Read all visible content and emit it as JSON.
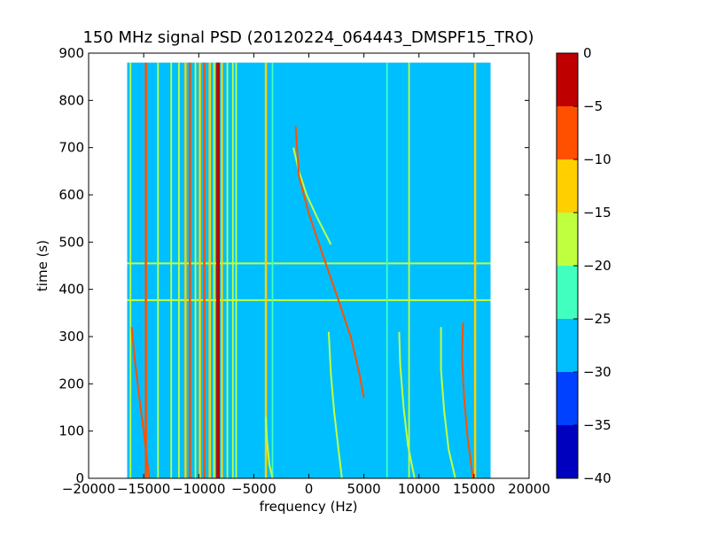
{
  "chart_data": {
    "type": "heatmap",
    "title": "150 MHz signal PSD (20120224_064443_DMSPF15_TRO)",
    "xlabel": "frequency (Hz)",
    "ylabel": "time (s)",
    "xlim": [
      -20000,
      20000
    ],
    "ylim": [
      0,
      900
    ],
    "x_ticks": [
      -20000,
      -15000,
      -10000,
      -5000,
      0,
      5000,
      10000,
      15000,
      20000
    ],
    "x_tick_labels": [
      "−20000",
      "−15000",
      "−10000",
      "−5000",
      "0",
      "5000",
      "10000",
      "15000",
      "20000"
    ],
    "y_ticks": [
      0,
      100,
      200,
      300,
      400,
      500,
      600,
      700,
      800,
      900
    ],
    "y_tick_labels": [
      "0",
      "100",
      "200",
      "300",
      "400",
      "500",
      "600",
      "700",
      "800",
      "900"
    ],
    "data_extent": {
      "x": [
        -16500,
        16500
      ],
      "y": [
        0,
        880
      ]
    },
    "background_level": -28,
    "colorbar": {
      "levels": [
        -40,
        -35,
        -30,
        -25,
        -20,
        -15,
        -10,
        -5,
        0
      ],
      "tick_labels": [
        "−40",
        "−35",
        "−30",
        "−25",
        "−20",
        "−15",
        "−10",
        "−5",
        "0"
      ],
      "colors": [
        "#0000bf",
        "#0040ff",
        "#00bfff",
        "#40ffbf",
        "#bfff40",
        "#ffcf00",
        "#ff5000",
        "#bf0000"
      ]
    },
    "vertical_lines": [
      {
        "x": -16200,
        "level": -20
      },
      {
        "x": -14800,
        "level": -10
      },
      {
        "x": -13700,
        "level": -20
      },
      {
        "x": -12500,
        "level": -20
      },
      {
        "x": -11800,
        "level": -20
      },
      {
        "x": -11200,
        "level": -15
      },
      {
        "x": -10800,
        "level": -10
      },
      {
        "x": -10300,
        "level": -20
      },
      {
        "x": -9900,
        "level": -15
      },
      {
        "x": -9500,
        "level": -10
      },
      {
        "x": -9000,
        "level": -15
      },
      {
        "x": -8600,
        "level": -20
      },
      {
        "x": -8250,
        "level": 0
      },
      {
        "x": -7900,
        "level": -15
      },
      {
        "x": -7400,
        "level": -20
      },
      {
        "x": -6900,
        "level": -20
      },
      {
        "x": -6600,
        "level": -20
      },
      {
        "x": -3900,
        "level": -15
      },
      {
        "x": -3300,
        "level": -25
      },
      {
        "x": 7100,
        "level": -25
      },
      {
        "x": 9100,
        "level": -20
      },
      {
        "x": 15100,
        "level": -15
      }
    ],
    "horizontal_lines": [
      {
        "y": 377,
        "level": -20
      },
      {
        "y": 455,
        "level": -20
      }
    ],
    "doppler_traces": [
      {
        "level": -10,
        "points": [
          [
            -16100,
            320
          ],
          [
            -15800,
            250
          ],
          [
            -15400,
            170
          ],
          [
            -15000,
            100
          ],
          [
            -14700,
            40
          ],
          [
            -14500,
            0
          ]
        ]
      },
      {
        "level": -20,
        "points": [
          [
            -3900,
            130
          ],
          [
            -3800,
            80
          ],
          [
            -3600,
            30
          ],
          [
            -3300,
            0
          ]
        ]
      },
      {
        "level": -20,
        "points": [
          [
            -1400,
            700
          ],
          [
            -900,
            650
          ],
          [
            -200,
            600
          ],
          [
            800,
            550
          ],
          [
            2000,
            495
          ]
        ]
      },
      {
        "level": -10,
        "points": [
          [
            -1200,
            745
          ],
          [
            -900,
            640
          ],
          [
            0,
            560
          ],
          [
            1300,
            470
          ],
          [
            2500,
            390
          ],
          [
            3800,
            300
          ],
          [
            4600,
            220
          ],
          [
            5000,
            170
          ]
        ]
      },
      {
        "level": -20,
        "points": [
          [
            1800,
            310
          ],
          [
            2000,
            220
          ],
          [
            2300,
            140
          ],
          [
            2700,
            60
          ],
          [
            3000,
            0
          ]
        ]
      },
      {
        "level": -20,
        "points": [
          [
            8200,
            310
          ],
          [
            8300,
            240
          ],
          [
            8600,
            150
          ],
          [
            9000,
            70
          ],
          [
            9600,
            0
          ]
        ]
      },
      {
        "level": -20,
        "points": [
          [
            12000,
            320
          ],
          [
            12000,
            230
          ],
          [
            12300,
            140
          ],
          [
            12700,
            60
          ],
          [
            13300,
            0
          ]
        ]
      },
      {
        "level": -10,
        "points": [
          [
            14000,
            330
          ],
          [
            13900,
            260
          ],
          [
            14100,
            170
          ],
          [
            14400,
            90
          ],
          [
            14900,
            0
          ]
        ]
      }
    ]
  }
}
